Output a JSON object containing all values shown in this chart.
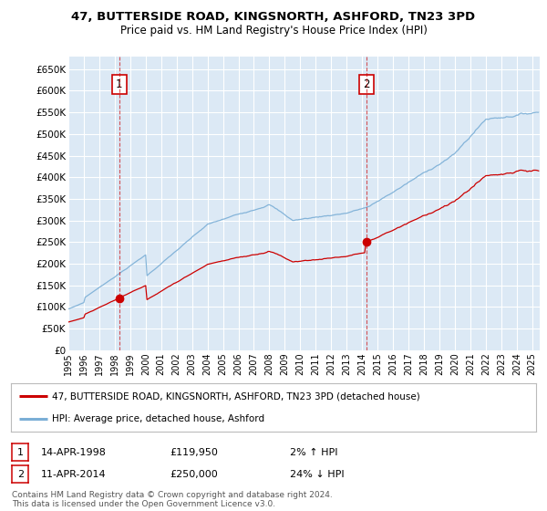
{
  "title": "47, BUTTERSIDE ROAD, KINGSNORTH, ASHFORD, TN23 3PD",
  "subtitle": "Price paid vs. HM Land Registry's House Price Index (HPI)",
  "legend_line1": "47, BUTTERSIDE ROAD, KINGSNORTH, ASHFORD, TN23 3PD (detached house)",
  "legend_line2": "HPI: Average price, detached house, Ashford",
  "transaction1_date": "14-APR-1998",
  "transaction1_price": 119950,
  "transaction1_note": "2% ↑ HPI",
  "transaction2_date": "11-APR-2014",
  "transaction2_price": 250000,
  "transaction2_note": "24% ↓ HPI",
  "transaction1_year": 1998.29,
  "transaction2_year": 2014.28,
  "ylim": [
    0,
    680000
  ],
  "xlim_start": 1995.0,
  "xlim_end": 2025.5,
  "bg_color": "#dce9f5",
  "line_color_red": "#cc0000",
  "line_color_blue": "#7aaed6",
  "grid_color": "#ffffff",
  "footnote1": "Contains HM Land Registry data © Crown copyright and database right 2024.",
  "footnote2": "This data is licensed under the Open Government Licence v3.0.",
  "ytick_labels": [
    "£0",
    "£50K",
    "£100K",
    "£150K",
    "£200K",
    "£250K",
    "£300K",
    "£350K",
    "£400K",
    "£450K",
    "£500K",
    "£550K",
    "£600K",
    "£650K"
  ],
  "yticks": [
    0,
    50000,
    100000,
    150000,
    200000,
    250000,
    300000,
    350000,
    400000,
    450000,
    500000,
    550000,
    600000,
    650000
  ]
}
